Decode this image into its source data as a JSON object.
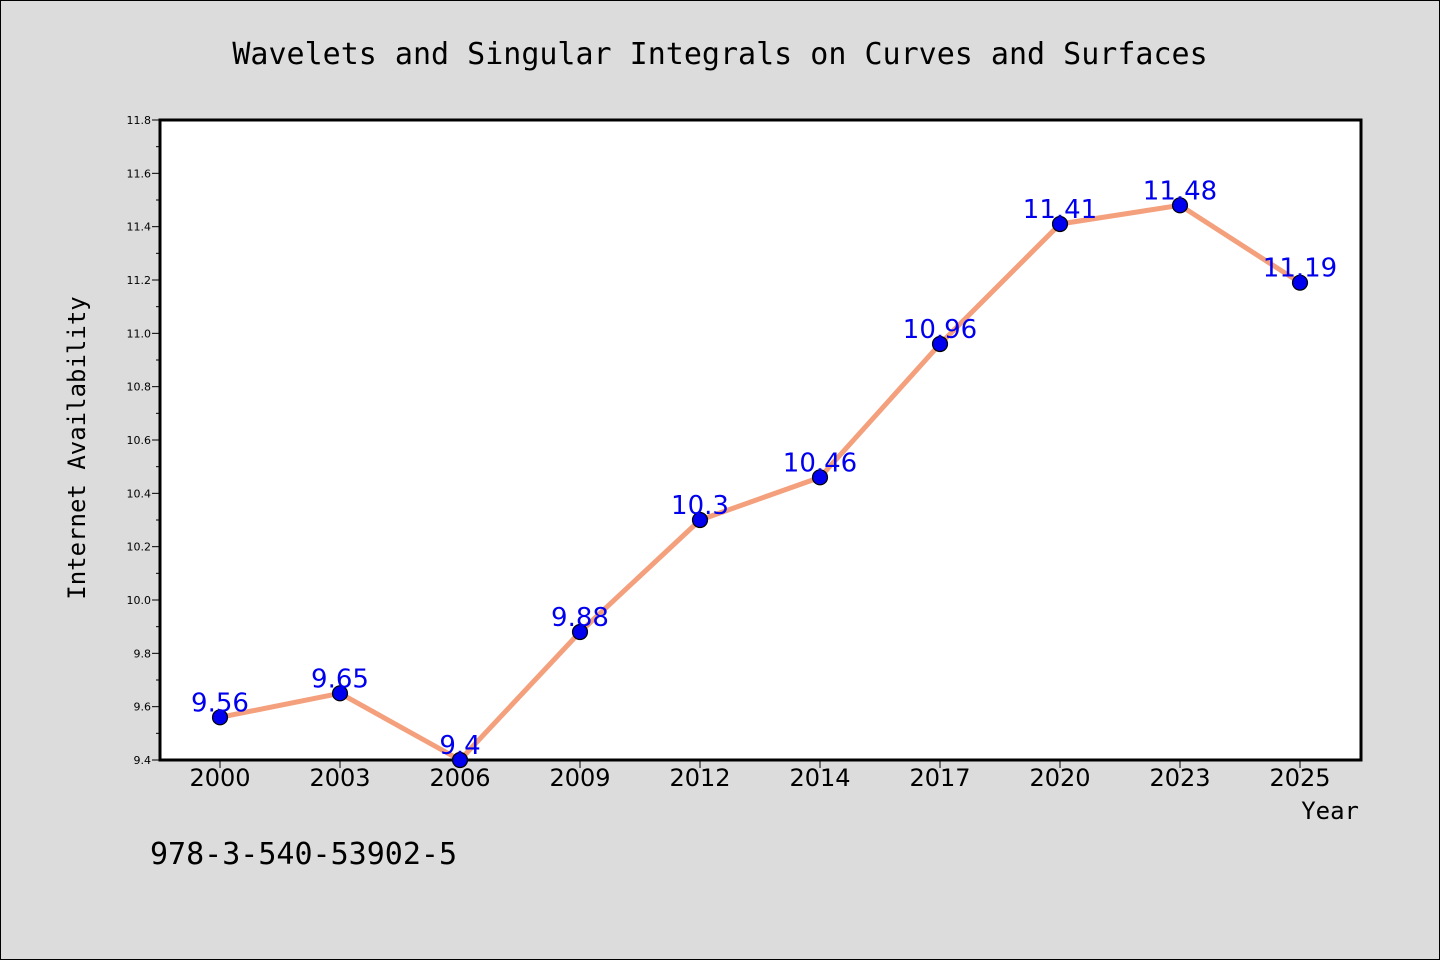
{
  "chart_data": {
    "type": "line",
    "title": "Wavelets and Singular Integrals on Curves and Surfaces",
    "xlabel": "Year",
    "ylabel": "Internet Availability",
    "categories": [
      "2000",
      "2003",
      "2006",
      "2009",
      "2012",
      "2014",
      "2017",
      "2020",
      "2023",
      "2025"
    ],
    "series": [
      {
        "values": [
          9.56,
          9.65,
          9.4,
          9.88,
          10.3,
          10.46,
          10.96,
          11.41,
          11.48,
          11.19
        ],
        "labels": [
          "9.56",
          "9.65",
          "9.4",
          "9.88",
          "10.3",
          "10.46",
          "10.96",
          "11.41",
          "11.48",
          "11.19"
        ],
        "line_color": "#f4a07c",
        "marker_color": "#0000ee",
        "label_color": "#0000ee"
      }
    ],
    "ylim": [
      9.4,
      11.8
    ],
    "yticks": [
      "9.4",
      "9.6",
      "9.8",
      "10.0",
      "10.2",
      "10.4",
      "10.6",
      "10.8",
      "11.0",
      "11.2",
      "11.4",
      "11.6",
      "11.8"
    ],
    "grid": false,
    "legend": "none",
    "background": "#dcdcdc",
    "plot_background": "#ffffff"
  },
  "footnote": "978-3-540-53902-5"
}
